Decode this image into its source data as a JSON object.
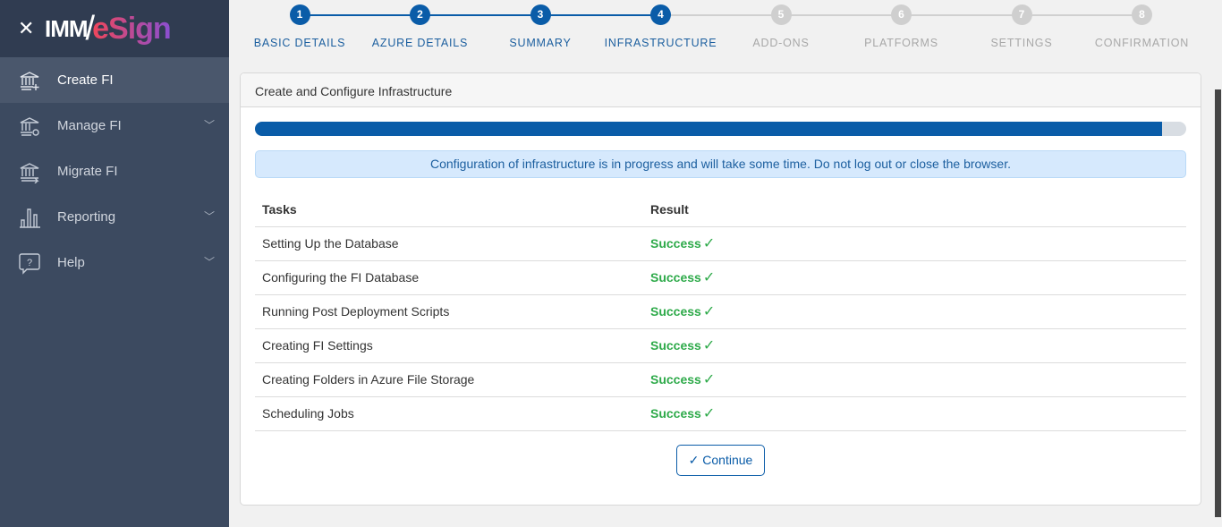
{
  "brand": {
    "prefix": "IMM",
    "slash": "/",
    "name": "eSign"
  },
  "sidebar": {
    "items": [
      {
        "label": "Create FI",
        "icon": "bank-plus-icon",
        "active": true,
        "expandable": false
      },
      {
        "label": "Manage FI",
        "icon": "bank-gear-icon",
        "expandable": true
      },
      {
        "label": "Migrate FI",
        "icon": "bank-arrow-icon",
        "expandable": false
      },
      {
        "label": "Reporting",
        "icon": "bar-chart-icon",
        "expandable": true
      },
      {
        "label": "Help",
        "icon": "help-bubble-icon",
        "expandable": true
      }
    ]
  },
  "steps": [
    {
      "num": "1",
      "label": "BASIC DETAILS",
      "done": true
    },
    {
      "num": "2",
      "label": "AZURE DETAILS",
      "done": true
    },
    {
      "num": "3",
      "label": "SUMMARY",
      "done": true
    },
    {
      "num": "4",
      "label": "INFRASTRUCTURE",
      "done": true
    },
    {
      "num": "5",
      "label": "ADD-ONS",
      "done": false
    },
    {
      "num": "6",
      "label": "PLATFORMS",
      "done": false
    },
    {
      "num": "7",
      "label": "SETTINGS",
      "done": false
    },
    {
      "num": "8",
      "label": "CONFIRMATION",
      "done": false
    }
  ],
  "card": {
    "title": "Create and Configure Infrastructure",
    "progress_percent": 97.4,
    "notice": "Configuration of infrastructure is in progress and will take some time. Do not log out or close the browser.",
    "columns": [
      "Tasks",
      "Result"
    ],
    "rows": [
      {
        "task": "Setting Up the Database",
        "result": "Success"
      },
      {
        "task": "Configuring the FI Database",
        "result": "Success"
      },
      {
        "task": "Running Post Deployment Scripts",
        "result": "Success"
      },
      {
        "task": "Creating FI Settings",
        "result": "Success"
      },
      {
        "task": "Creating Folders in Azure File Storage",
        "result": "Success"
      },
      {
        "task": "Scheduling Jobs",
        "result": "Success"
      }
    ],
    "continue_label": "Continue"
  },
  "colors": {
    "accent": "#0a5ca8",
    "success": "#2eaa4a",
    "sidebar": "#3c4a60"
  }
}
